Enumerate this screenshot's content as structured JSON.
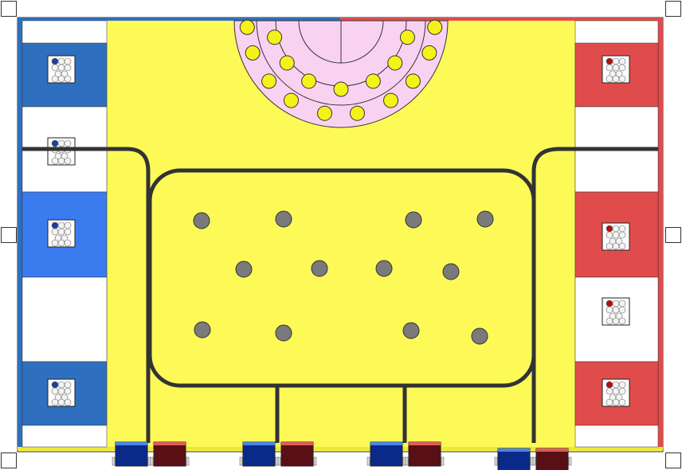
{
  "field": {
    "background": "#fdfa58",
    "blue_alliance": "#2f6fbf",
    "blue_alliance_light": "#3a7cf0",
    "red_alliance": "#e04c4c",
    "line_color": "#333333",
    "center_dome": "#f9d2f2",
    "center_ball": "#f5f21a",
    "center_pillar": "#7a7a7a"
  },
  "blue_stations": [
    {
      "name": "blue-station-1",
      "kind": "dark"
    },
    {
      "name": "blue-station-2",
      "kind": "white"
    },
    {
      "name": "blue-station-3",
      "kind": "light"
    },
    {
      "name": "blue-station-4",
      "kind": "white"
    },
    {
      "name": "blue-station-5",
      "kind": "dark"
    }
  ],
  "red_stations": [
    {
      "name": "red-station-1",
      "kind": "red"
    },
    {
      "name": "red-station-2",
      "kind": "white"
    },
    {
      "name": "red-station-3",
      "kind": "red"
    },
    {
      "name": "red-station-4",
      "kind": "white"
    },
    {
      "name": "red-station-5",
      "kind": "red"
    }
  ],
  "alliance_bins": [
    {
      "team": "blue",
      "color": "#0a2a8a"
    },
    {
      "team": "red",
      "color": "#5a0f14"
    },
    {
      "team": "blue",
      "color": "#0a2a8a"
    },
    {
      "team": "red",
      "color": "#5a0f14"
    },
    {
      "team": "blue",
      "color": "#0a2a8a"
    },
    {
      "team": "red",
      "color": "#5a0f14"
    },
    {
      "team": "blue",
      "color": "#0a2a8a"
    },
    {
      "team": "red",
      "color": "#5a0f14"
    }
  ]
}
